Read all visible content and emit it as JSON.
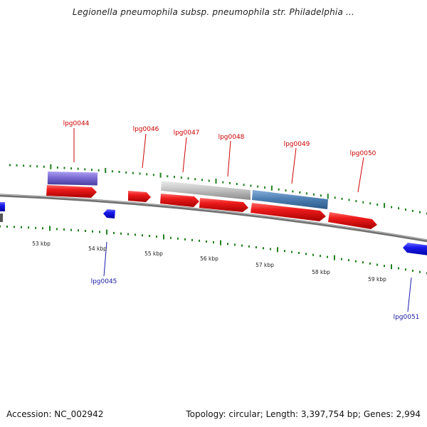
{
  "title": "Legionella pneumophila subsp. pneumophila str. Philadelphia ...",
  "footer": {
    "accession": "Accession: NC_002942",
    "summary": "Topology: circular; Length: 3,397,754 bp; Genes: 2,994"
  },
  "colors": {
    "backbone": "#7a7a7a",
    "tick": "#1e7f1e",
    "cds_forward": "#e8121b",
    "cds_reverse": "#1414e6",
    "label_forward": "#cc0000",
    "label_reverse": "#1a1aa8",
    "feature_purple": "#7b6bd3",
    "feature_grey": "#c4c4c4",
    "feature_steelblue": "#4f80b3"
  },
  "chart_data": {
    "type": "genome-map",
    "scale_labels": [
      "53 kbp",
      "54 kbp",
      "55 kbp",
      "56 kbp",
      "57 kbp",
      "58 kbp",
      "59 kbp"
    ],
    "gene_labels": [
      {
        "name": "lpg0044",
        "strand": "forward"
      },
      {
        "name": "lpg0045",
        "strand": "reverse"
      },
      {
        "name": "lpg0046",
        "strand": "forward"
      },
      {
        "name": "lpg0047",
        "strand": "forward"
      },
      {
        "name": "lpg0048",
        "strand": "forward"
      },
      {
        "name": "lpg0049",
        "strand": "forward"
      },
      {
        "name": "lpg0050",
        "strand": "forward"
      },
      {
        "name": "lpg0051",
        "strand": "reverse"
      }
    ]
  }
}
